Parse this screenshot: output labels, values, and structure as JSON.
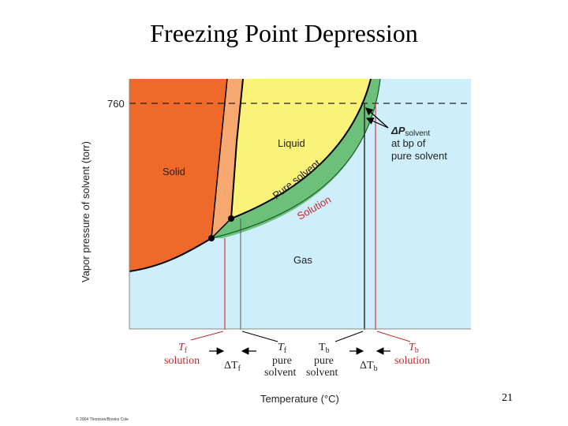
{
  "title": "Freezing Point Depression",
  "slide_number": "21",
  "copyright": "© 2004 Thomson/Brooks Cole",
  "axes": {
    "y_label": "Vapor pressure of solvent (torr)",
    "x_label": "Temperature (°C)",
    "y_tick": "760"
  },
  "regions": {
    "solid": "Solid",
    "liquid": "Liquid",
    "gas": "Gas"
  },
  "curves": {
    "pure_solvent": "Pure solvent",
    "solution": "Solution"
  },
  "annotation": {
    "delta_p": "ΔP",
    "delta_p_sub": "solvent",
    "line2": "at bp of",
    "line3": "pure solvent"
  },
  "bottom_labels": {
    "tf_solution_sym": "T",
    "tf_solution_sub": "f",
    "tf_solution_word": "solution",
    "delta_tf": "ΔT",
    "delta_tf_sub": "f",
    "tf_pure_sym": "T",
    "tf_pure_sub": "f",
    "tf_pure_line1": "pure",
    "tf_pure_line2": "solvent",
    "tb_pure_sym": "T",
    "tb_pure_sub": "b",
    "tb_pure_line1": "pure",
    "tb_pure_line2": "solvent",
    "delta_tb": "ΔT",
    "delta_tb_sub": "b",
    "tb_solution_sym": "T",
    "tb_solution_sub": "b",
    "tb_solution_word": "solution"
  },
  "colors": {
    "gas": "#cdeefa",
    "solid": "#ef6a2a",
    "liquid": "#fbf27a",
    "solution_band": "#6cc07a",
    "solid_band": "#f7a870",
    "red_line": "#d23a3a"
  }
}
